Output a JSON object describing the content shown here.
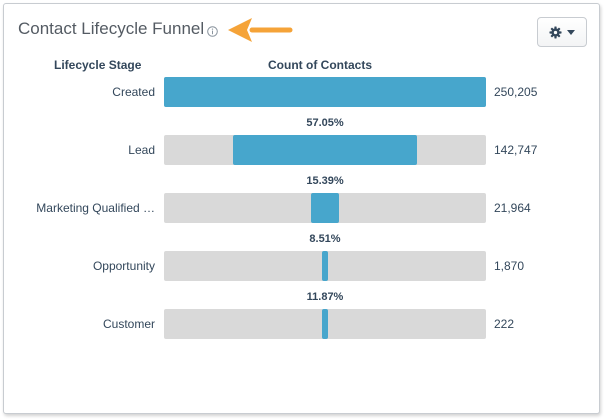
{
  "card": {
    "title": "Contact Lifecycle Funnel",
    "info_icon": "info-icon",
    "settings_icon": "gear-icon",
    "dropdown_icon": "caret-down-icon"
  },
  "colors": {
    "bar": "#47a6cc",
    "track": "#d9d9d9",
    "arrow": "#f5a338"
  },
  "chart_data": {
    "type": "bar",
    "orientation": "horizontal-funnel",
    "headers": {
      "stage": "Lifecycle Stage",
      "count": "Count of Contacts"
    },
    "stages": [
      {
        "label": "Created",
        "value": 250205,
        "value_label": "250,205",
        "conversion": ""
      },
      {
        "label": "Lead",
        "value": 142747,
        "value_label": "142,747",
        "conversion": "57.05%"
      },
      {
        "label": "Marketing Qualified …",
        "value": 21964,
        "value_label": "21,964",
        "conversion": "15.39%"
      },
      {
        "label": "Opportunity",
        "value": 1870,
        "value_label": "1,870",
        "conversion": "8.51%"
      },
      {
        "label": "Customer",
        "value": 222,
        "value_label": "222",
        "conversion": "11.87%"
      }
    ],
    "max": 250205
  }
}
